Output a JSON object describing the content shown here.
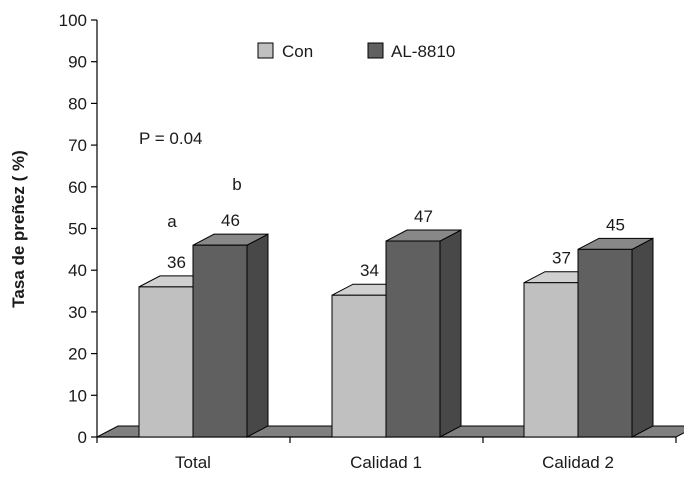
{
  "chart_data": {
    "type": "bar",
    "ylabel": "Tasa de preñez  ( %)",
    "ylim": [
      0,
      100
    ],
    "yticks": [
      0,
      10,
      20,
      30,
      40,
      50,
      60,
      70,
      80,
      90,
      100
    ],
    "categories": [
      "Total",
      "Calidad 1",
      "Calidad 2"
    ],
    "series": [
      {
        "name": "Con",
        "values": [
          36,
          34,
          37
        ],
        "color": "#c0c0c0"
      },
      {
        "name": "AL-8810",
        "values": [
          46,
          47,
          45
        ],
        "color": "#606060"
      }
    ],
    "annotations": {
      "pvalue": "P = 0.04",
      "letter_con_total": "a",
      "letter_al_total": "b"
    },
    "legend_position": "top-center",
    "bar_style": "3d",
    "grid": false
  }
}
